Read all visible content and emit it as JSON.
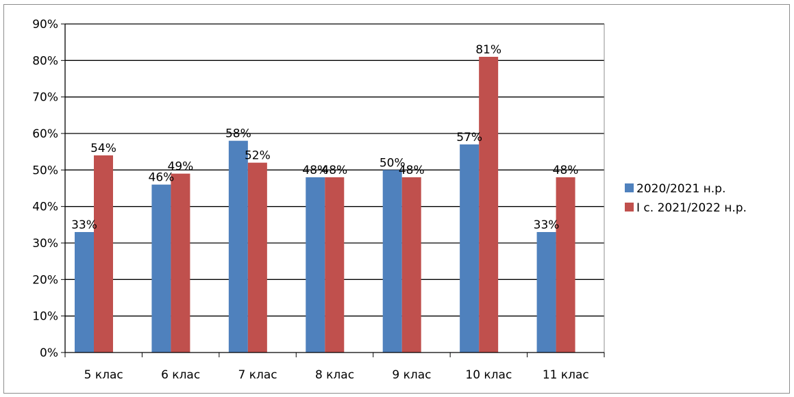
{
  "chart_data": {
    "type": "bar",
    "categories": [
      "5 клас",
      "6 клас",
      "7 клас",
      "8 клас",
      "9 клас",
      "10 клас",
      "11 клас"
    ],
    "series": [
      {
        "name": "2020/2021 н.р.",
        "values": [
          33,
          46,
          58,
          48,
          50,
          57,
          33
        ],
        "color": "#4f81bd"
      },
      {
        "name": "І с. 2021/2022 н.р.",
        "values": [
          54,
          49,
          52,
          48,
          48,
          81,
          48
        ],
        "color": "#c0504d"
      }
    ],
    "y_ticks": [
      "0%",
      "10%",
      "20%",
      "30%",
      "40%",
      "50%",
      "60%",
      "70%",
      "80%",
      "90%"
    ],
    "ylim": [
      0,
      90
    ],
    "y_unit": "%",
    "grid": true,
    "legend_position": "right",
    "title": "",
    "xlabel": "",
    "ylabel": ""
  }
}
